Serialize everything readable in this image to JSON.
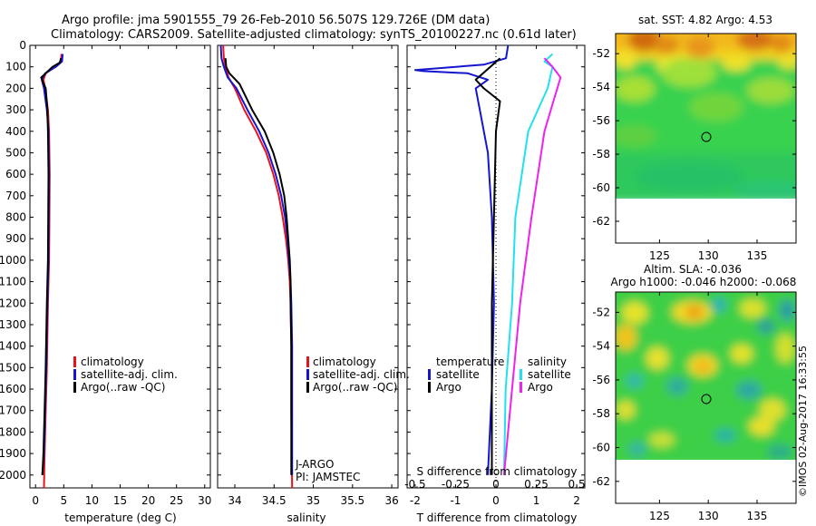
{
  "header": {
    "line1": "Argo profile: jma 5901555_79 26-Feb-2010 56.507S 129.726E (DM data)",
    "line2": "Climatology: CARS2009. Satellite-adjusted climatology: synTS_20100227.nc (0.61d later)"
  },
  "colors": {
    "climatology": "#e8141b",
    "satellite": "#1515d0",
    "argo": "#000000",
    "sat_salinity": "#22e0ee",
    "argo_salinity": "#ee22ee"
  },
  "chart_data": [
    {
      "type": "line",
      "name": "temperature-profile",
      "xlabel": "temperature (deg C)",
      "ylabel": "",
      "xlim": [
        -1,
        31
      ],
      "ylim": [
        2060,
        0
      ],
      "xticks": [
        "0",
        "5",
        "10",
        "15",
        "20",
        "25",
        "30"
      ],
      "xtick_values": [
        0,
        5,
        10,
        15,
        20,
        25,
        30
      ],
      "yticks": [
        "0",
        "100",
        "200",
        "300",
        "400",
        "500",
        "600",
        "700",
        "800",
        "900",
        "1000",
        "1100",
        "1200",
        "1300",
        "1400",
        "1500",
        "1600",
        "1700",
        "1800",
        "1900",
        "2000"
      ],
      "ytick_values": [
        0,
        100,
        200,
        300,
        400,
        500,
        600,
        700,
        800,
        900,
        1000,
        1100,
        1200,
        1300,
        1400,
        1500,
        1600,
        1700,
        1800,
        1900,
        2000
      ],
      "legend": [
        "climatology",
        "satellite-adj. clim.",
        "Argo(..raw -QC)"
      ],
      "series": [
        {
          "name": "climatology",
          "color_key": "climatology",
          "points": [
            [
              4.6,
              40
            ],
            [
              4.5,
              75
            ],
            [
              3.5,
              100
            ],
            [
              1.8,
              130
            ],
            [
              1.4,
              160
            ],
            [
              1.7,
              200
            ],
            [
              2.2,
              300
            ],
            [
              2.4,
              400
            ],
            [
              2.5,
              600
            ],
            [
              2.45,
              800
            ],
            [
              2.4,
              1000
            ],
            [
              2.2,
              1200
            ],
            [
              2.0,
              1500
            ],
            [
              1.8,
              1700
            ],
            [
              1.6,
              1900
            ],
            [
              1.5,
              2060
            ]
          ]
        },
        {
          "name": "satellite-adj. clim.",
          "color_key": "satellite",
          "points": [
            [
              4.8,
              40
            ],
            [
              4.7,
              75
            ],
            [
              3.6,
              100
            ],
            [
              1.7,
              130
            ],
            [
              1.1,
              160
            ],
            [
              1.5,
              200
            ],
            [
              2.0,
              300
            ],
            [
              2.3,
              400
            ],
            [
              2.4,
              600
            ],
            [
              2.35,
              800
            ],
            [
              2.3,
              1000
            ],
            [
              2.1,
              1200
            ],
            [
              1.9,
              1500
            ],
            [
              1.7,
              1700
            ],
            [
              1.5,
              1900
            ],
            [
              1.2,
              2000
            ]
          ]
        },
        {
          "name": "Argo",
          "color_key": "argo",
          "points": [
            [
              4.5,
              60
            ],
            [
              4.3,
              80
            ],
            [
              3.0,
              100
            ],
            [
              1.8,
              130
            ],
            [
              1.0,
              150
            ],
            [
              1.3,
              170
            ],
            [
              1.8,
              200
            ],
            [
              2.1,
              300
            ],
            [
              2.2,
              400
            ],
            [
              2.3,
              600
            ],
            [
              2.25,
              800
            ],
            [
              2.2,
              1000
            ],
            [
              2.0,
              1200
            ],
            [
              1.8,
              1500
            ],
            [
              1.6,
              1700
            ],
            [
              1.4,
              1900
            ],
            [
              1.2,
              2000
            ]
          ]
        }
      ]
    },
    {
      "type": "line",
      "name": "salinity-profile",
      "xlabel": "salinity",
      "xlim": [
        33.78,
        36.08
      ],
      "ylim": [
        2060,
        0
      ],
      "xticks": [
        "34",
        "34.5",
        "35",
        "35.5",
        "36"
      ],
      "xtick_values": [
        34,
        34.5,
        35,
        35.5,
        36
      ],
      "legend": [
        "climatology",
        "satellite-adj. clim.",
        "Argo(..raw -QC)"
      ],
      "annotation": [
        "J-ARGO",
        "PI: JAMSTEC"
      ],
      "series": [
        {
          "name": "climatology",
          "color_key": "climatology",
          "points": [
            [
              33.85,
              0
            ],
            [
              33.86,
              60
            ],
            [
              33.88,
              100
            ],
            [
              33.92,
              150
            ],
            [
              34.0,
              200
            ],
            [
              34.12,
              300
            ],
            [
              34.27,
              400
            ],
            [
              34.4,
              500
            ],
            [
              34.49,
              600
            ],
            [
              34.56,
              700
            ],
            [
              34.61,
              800
            ],
            [
              34.65,
              900
            ],
            [
              34.68,
              1000
            ],
            [
              34.7,
              1100
            ],
            [
              34.71,
              1200
            ],
            [
              34.72,
              1400
            ],
            [
              34.72,
              1700
            ],
            [
              34.73,
              2060
            ]
          ]
        },
        {
          "name": "satellite-adj. clim.",
          "color_key": "satellite",
          "points": [
            [
              33.82,
              0
            ],
            [
              33.83,
              60
            ],
            [
              33.86,
              100
            ],
            [
              33.91,
              150
            ],
            [
              34.02,
              200
            ],
            [
              34.16,
              300
            ],
            [
              34.31,
              400
            ],
            [
              34.43,
              500
            ],
            [
              34.52,
              600
            ],
            [
              34.59,
              700
            ],
            [
              34.64,
              800
            ],
            [
              34.67,
              900
            ],
            [
              34.69,
              1000
            ],
            [
              34.71,
              1100
            ],
            [
              34.72,
              1200
            ],
            [
              34.73,
              1400
            ],
            [
              34.73,
              1700
            ],
            [
              34.73,
              2000
            ]
          ]
        },
        {
          "name": "Argo",
          "color_key": "argo",
          "points": [
            [
              33.88,
              60
            ],
            [
              33.89,
              100
            ],
            [
              33.93,
              130
            ],
            [
              34.06,
              180
            ],
            [
              34.22,
              300
            ],
            [
              34.38,
              400
            ],
            [
              34.49,
              500
            ],
            [
              34.57,
              600
            ],
            [
              34.63,
              700
            ],
            [
              34.66,
              800
            ],
            [
              34.68,
              900
            ],
            [
              34.7,
              1000
            ],
            [
              34.71,
              1100
            ],
            [
              34.71,
              1200
            ],
            [
              34.72,
              1400
            ],
            [
              34.72,
              1700
            ],
            [
              34.72,
              2000
            ]
          ]
        }
      ]
    },
    {
      "type": "line",
      "name": "difference-profile",
      "xlabel": "T difference from climatology",
      "xlabel2": "S difference from climatology",
      "xlim": [
        -2.2,
        2.2
      ],
      "ylim": [
        2060,
        0
      ],
      "xticks": [
        "-2",
        "-1",
        "0",
        "1",
        "2"
      ],
      "xtick_values": [
        -2,
        -1,
        0,
        1,
        2
      ],
      "xticks2": [
        "-0.5",
        "-0.25",
        "0",
        "0.25",
        "0.5"
      ],
      "xtick2_values": [
        -0.5,
        -0.25,
        0,
        0.25,
        0.5
      ],
      "legend_temperature": [
        "temperature",
        "satellite",
        "Argo"
      ],
      "legend_salinity": [
        "salinity",
        "satellite",
        "Argo"
      ],
      "series": [
        {
          "name": "T satellite",
          "color_key": "satellite",
          "points": [
            [
              0.3,
              0
            ],
            [
              0.25,
              60
            ],
            [
              -0.3,
              90
            ],
            [
              -2.0,
              115
            ],
            [
              -1.8,
              120
            ],
            [
              -0.7,
              130
            ],
            [
              -0.2,
              160
            ],
            [
              -0.5,
              200
            ],
            [
              -0.4,
              300
            ],
            [
              -0.2,
              500
            ],
            [
              -0.1,
              800
            ],
            [
              -0.05,
              1200
            ],
            [
              -0.1,
              1600
            ],
            [
              -0.2,
              2000
            ]
          ]
        },
        {
          "name": "T Argo",
          "color_key": "argo",
          "points": [
            [
              0.1,
              60
            ],
            [
              -0.2,
              110
            ],
            [
              -0.5,
              160
            ],
            [
              -0.3,
              200
            ],
            [
              0.1,
              260
            ],
            [
              0.0,
              400
            ],
            [
              -0.05,
              800
            ],
            [
              -0.1,
              1200
            ],
            [
              -0.1,
              1600
            ],
            [
              -0.1,
              2000
            ]
          ]
        },
        {
          "name": "S satellite",
          "color_key": "sat_salinity",
          "points": [
            [
              0.35,
              40
            ],
            [
              0.3,
              75
            ],
            [
              0.35,
              100
            ],
            [
              0.32,
              200
            ],
            [
              0.2,
              400
            ],
            [
              0.12,
              800
            ],
            [
              0.1,
              1200
            ],
            [
              0.06,
              1600
            ],
            [
              0.05,
              2000
            ]
          ]
        },
        {
          "name": "S Argo",
          "color_key": "argo_salinity",
          "points": [
            [
              0.3,
              60
            ],
            [
              0.35,
              100
            ],
            [
              0.4,
              150
            ],
            [
              0.36,
              250
            ],
            [
              0.3,
              400
            ],
            [
              0.22,
              800
            ],
            [
              0.15,
              1200
            ],
            [
              0.1,
              1600
            ],
            [
              0.05,
              2000
            ]
          ]
        }
      ]
    },
    {
      "type": "heatmap",
      "name": "sst-map",
      "title": "sat. SST: 4.82  Argo: 4.53",
      "xticks": [
        "125",
        "130",
        "135"
      ],
      "yticks": [
        "-52",
        "-54",
        "-56",
        "-58",
        "-60",
        "-62"
      ],
      "xlim": [
        120.5,
        139
      ],
      "ylim": [
        -63.3,
        -50.8
      ],
      "data_extent": [
        -60,
        -50.8
      ],
      "marker": [
        129.726,
        -56.507
      ]
    },
    {
      "type": "heatmap",
      "name": "sla-map",
      "title": "Altim. SLA: -0.036",
      "subtitle": "Argo h1000: -0.046 h2000: -0.068",
      "xticks": [
        "125",
        "130",
        "135"
      ],
      "yticks": [
        "-52",
        "-54",
        "-56",
        "-58",
        "-60",
        "-62"
      ],
      "xlim": [
        120.5,
        139
      ],
      "ylim": [
        -63.3,
        -50.8
      ],
      "data_extent": [
        -60,
        -50.8
      ],
      "marker": [
        129.726,
        -56.507
      ]
    }
  ],
  "credit": "©IMOS 02-Aug-2017 16:33:55"
}
